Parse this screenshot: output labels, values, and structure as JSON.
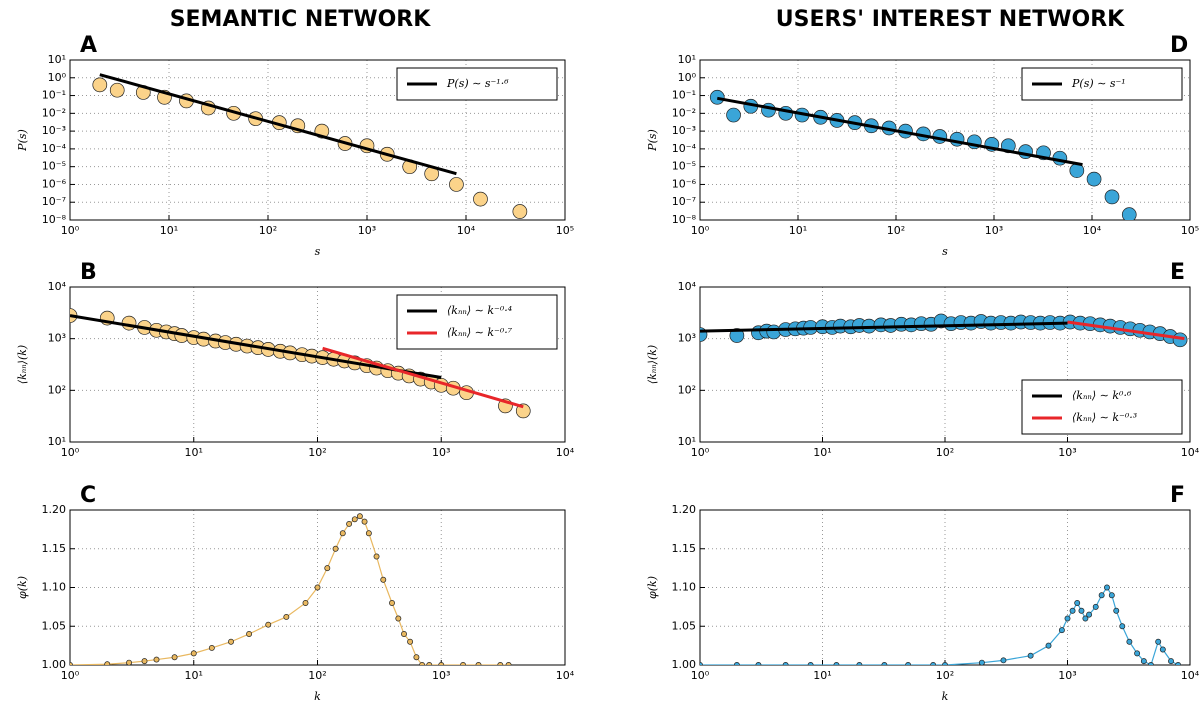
{
  "column_titles": [
    "SEMANTIC NETWORK",
    "USERS' INTEREST NETWORK"
  ],
  "chart_data": [
    {
      "type": "scatter",
      "panel": "A",
      "xscale": "log",
      "yscale": "log",
      "grid": true,
      "legend": "upper right",
      "xlabel": "s",
      "ylabel": "P(s)",
      "xlim": [
        1,
        100000
      ],
      "xticks": [
        {
          "value": 1,
          "label": "10⁰"
        },
        {
          "value": 10,
          "label": "10¹"
        },
        {
          "value": 100,
          "label": "10²"
        },
        {
          "value": 1000,
          "label": "10³"
        },
        {
          "value": 10000,
          "label": "10⁴"
        },
        {
          "value": 100000,
          "label": "10⁵"
        }
      ],
      "ylim": [
        1e-08,
        10
      ],
      "yticks": [
        {
          "value": 1e-08,
          "label": "10⁻⁸"
        },
        {
          "value": 1e-07,
          "label": "10⁻⁷"
        },
        {
          "value": 1e-06,
          "label": "10⁻⁶"
        },
        {
          "value": 1e-05,
          "label": "10⁻⁵"
        },
        {
          "value": 0.0001,
          "label": "10⁻⁴"
        },
        {
          "value": 0.001,
          "label": "10⁻³"
        },
        {
          "value": 0.01,
          "label": "10⁻²"
        },
        {
          "value": 0.1,
          "label": "10⁻¹"
        },
        {
          "value": 1,
          "label": "10⁰"
        },
        {
          "value": 10,
          "label": "10¹"
        }
      ],
      "series": [
        {
          "mode": "markers",
          "color": "#fbd38a",
          "x": [
            2,
            3,
            5.5,
            9,
            15,
            25,
            45,
            75,
            130,
            200,
            350,
            600,
            1000,
            1600,
            2700,
            4500,
            8000,
            14000,
            35000
          ],
          "values": [
            0.4,
            0.2,
            0.15,
            0.08,
            0.05,
            0.02,
            0.01,
            0.005,
            0.003,
            0.002,
            0.001,
            0.0002,
            0.00015,
            5e-05,
            1e-05,
            4e-06,
            1e-06,
            1.5e-07,
            3e-08
          ]
        },
        {
          "mode": "line",
          "name": "P(s) ∼ s⁻¹·⁶",
          "color": "#000000",
          "x": [
            2,
            8000
          ],
          "values": [
            1.5,
            4e-06
          ]
        }
      ]
    },
    {
      "type": "scatter",
      "panel": "B",
      "xscale": "log",
      "yscale": "log",
      "grid": true,
      "legend": "upper right",
      "ylabel": "⟨kₙₙ⟩(k)",
      "xlim": [
        1,
        10000
      ],
      "xticks": [
        {
          "value": 1,
          "label": "10⁰"
        },
        {
          "value": 10,
          "label": "10¹"
        },
        {
          "value": 100,
          "label": "10²"
        },
        {
          "value": 1000,
          "label": "10³"
        },
        {
          "value": 10000,
          "label": "10⁴"
        }
      ],
      "ylim": [
        10,
        10000
      ],
      "yticks": [
        {
          "value": 10,
          "label": "10¹"
        },
        {
          "value": 100,
          "label": "10²"
        },
        {
          "value": 1000,
          "label": "10³"
        },
        {
          "value": 10000,
          "label": "10⁴"
        }
      ],
      "series": [
        {
          "mode": "markers",
          "color": "#fbd38a",
          "x": [
            1,
            2,
            3,
            4,
            5,
            6,
            7,
            8,
            10,
            12,
            15,
            18,
            22,
            27,
            33,
            40,
            50,
            60,
            75,
            90,
            110,
            135,
            165,
            200,
            250,
            300,
            370,
            450,
            550,
            680,
            830,
            1000,
            1250,
            1600,
            3300,
            4600
          ],
          "values": [
            2800,
            2500,
            2000,
            1650,
            1450,
            1350,
            1250,
            1150,
            1050,
            980,
            900,
            840,
            780,
            720,
            670,
            620,
            570,
            530,
            490,
            460,
            430,
            400,
            370,
            340,
            300,
            270,
            240,
            215,
            190,
            165,
            145,
            125,
            110,
            90,
            50,
            40
          ]
        },
        {
          "mode": "line",
          "name": "⟨kₙₙ⟩ ∼ k⁻⁰·⁴",
          "color": "#000000",
          "x": [
            1,
            1000
          ],
          "values": [
            2800,
            177
          ]
        },
        {
          "mode": "line",
          "name": "⟨kₙₙ⟩ ∼ k⁻⁰·⁷",
          "color": "#e8262a",
          "x": [
            110,
            4600
          ],
          "values": [
            650,
            48
          ]
        }
      ]
    },
    {
      "type": "line",
      "panel": "C",
      "xscale": "log",
      "yscale": "linear",
      "grid": true,
      "xlabel": "k",
      "ylabel": "φ(k)",
      "xlim": [
        1,
        10000
      ],
      "xticks": [
        {
          "value": 1,
          "label": "10⁰"
        },
        {
          "value": 10,
          "label": "10¹"
        },
        {
          "value": 100,
          "label": "10²"
        },
        {
          "value": 1000,
          "label": "10³"
        },
        {
          "value": 10000,
          "label": "10⁴"
        }
      ],
      "ylim": [
        1,
        1.2
      ],
      "yticks": [
        {
          "value": 1,
          "label": "1.00"
        },
        1.05,
        {
          "value": 1.1,
          "label": "1.10"
        },
        1.15,
        {
          "value": 1.2,
          "label": "1.20"
        }
      ],
      "series": [
        {
          "mode": "line+markers",
          "color": "#e9b860",
          "x": [
            1,
            2,
            3,
            4,
            5,
            7,
            10,
            14,
            20,
            28,
            40,
            56,
            80,
            100,
            120,
            140,
            160,
            180,
            200,
            220,
            240,
            260,
            300,
            340,
            400,
            450,
            500,
            560,
            630,
            700,
            800,
            1000,
            1500,
            2000,
            3000,
            3500
          ],
          "values": [
            1,
            1.001,
            1.003,
            1.005,
            1.007,
            1.01,
            1.015,
            1.022,
            1.03,
            1.04,
            1.052,
            1.062,
            1.08,
            1.1,
            1.125,
            1.15,
            1.17,
            1.182,
            1.188,
            1.192,
            1.185,
            1.17,
            1.14,
            1.11,
            1.08,
            1.06,
            1.04,
            1.03,
            1.01,
            1,
            1,
            1,
            1,
            1,
            1,
            1
          ]
        }
      ]
    },
    {
      "type": "scatter",
      "panel": "D",
      "xscale": "log",
      "yscale": "log",
      "grid": true,
      "legend": "upper right",
      "xlabel": "s",
      "ylabel": "P(s)",
      "xlim": [
        1,
        100000
      ],
      "xticks": [
        {
          "value": 1,
          "label": "10⁰"
        },
        {
          "value": 10,
          "label": "10¹"
        },
        {
          "value": 100,
          "label": "10²"
        },
        {
          "value": 1000,
          "label": "10³"
        },
        {
          "value": 10000,
          "label": "10⁴"
        },
        {
          "value": 100000,
          "label": "10⁵"
        }
      ],
      "ylim": [
        1e-08,
        10
      ],
      "yticks": [
        {
          "value": 1e-08,
          "label": "10⁻⁸"
        },
        {
          "value": 1e-07,
          "label": "10⁻⁷"
        },
        {
          "value": 1e-06,
          "label": "10⁻⁶"
        },
        {
          "value": 1e-05,
          "label": "10⁻⁵"
        },
        {
          "value": 0.0001,
          "label": "10⁻⁴"
        },
        {
          "value": 0.001,
          "label": "10⁻³"
        },
        {
          "value": 0.01,
          "label": "10⁻²"
        },
        {
          "value": 0.1,
          "label": "10⁻¹"
        },
        {
          "value": 1,
          "label": "10⁰"
        },
        {
          "value": 10,
          "label": "10¹"
        }
      ],
      "series": [
        {
          "mode": "markers",
          "color": "#3aa5d8",
          "x": [
            1.5,
            2.2,
            3.3,
            5,
            7.5,
            11,
            17,
            25,
            38,
            56,
            85,
            125,
            190,
            280,
            420,
            630,
            950,
            1400,
            2100,
            3200,
            4700,
            7000,
            10500,
            16000,
            24000
          ],
          "values": [
            0.08,
            0.008,
            0.025,
            0.015,
            0.01,
            0.008,
            0.006,
            0.004,
            0.003,
            0.002,
            0.0015,
            0.001,
            0.0007,
            0.0005,
            0.00035,
            0.00025,
            0.00018,
            0.00015,
            7e-05,
            6e-05,
            3e-05,
            6e-06,
            2e-06,
            2e-07,
            2e-08
          ]
        },
        {
          "mode": "line",
          "name": "P(s) ∼ s⁻¹",
          "color": "#000000",
          "x": [
            1.5,
            8000
          ],
          "values": [
            0.07,
            1.3e-05
          ]
        }
      ]
    },
    {
      "type": "scatter",
      "panel": "E",
      "xscale": "log",
      "yscale": "log",
      "grid": true,
      "legend": "lower right",
      "ylabel": "⟨kₙₙ⟩(k)",
      "xlim": [
        1,
        10000
      ],
      "xticks": [
        {
          "value": 1,
          "label": "10⁰"
        },
        {
          "value": 10,
          "label": "10¹"
        },
        {
          "value": 100,
          "label": "10²"
        },
        {
          "value": 1000,
          "label": "10³"
        },
        {
          "value": 10000,
          "label": "10⁴"
        }
      ],
      "ylim": [
        10,
        10000
      ],
      "yticks": [
        {
          "value": 10,
          "label": "10¹"
        },
        {
          "value": 100,
          "label": "10²"
        },
        {
          "value": 1000,
          "label": "10³"
        },
        {
          "value": 10000,
          "label": "10⁴"
        }
      ],
      "series": [
        {
          "mode": "markers",
          "color": "#3aa5d8",
          "x": [
            1,
            2,
            3,
            3.5,
            4,
            5,
            6,
            7,
            8,
            10,
            12,
            14,
            17,
            20,
            24,
            30,
            36,
            44,
            53,
            64,
            77,
            93,
            112,
            135,
            163,
            197,
            237,
            286,
            345,
            416,
            500,
            600,
            720,
            870,
            1050,
            1270,
            1530,
            1850,
            2230,
            2700,
            3250,
            3900,
            4700,
            5700,
            6900,
            8300
          ],
          "values": [
            1200,
            1150,
            1300,
            1400,
            1350,
            1500,
            1550,
            1600,
            1650,
            1700,
            1650,
            1750,
            1700,
            1800,
            1750,
            1850,
            1800,
            1900,
            1850,
            1950,
            1900,
            2200,
            1950,
            2050,
            2000,
            2150,
            2000,
            2050,
            2000,
            2100,
            2050,
            2000,
            2050,
            2000,
            2100,
            2000,
            1950,
            1850,
            1750,
            1650,
            1550,
            1450,
            1350,
            1250,
            1100,
            950
          ]
        },
        {
          "mode": "line",
          "name": "⟨kₙₙ⟩ ∼ k⁰·⁶",
          "color": "#000000",
          "x": [
            1,
            1000
          ],
          "values": [
            1400,
            2000
          ]
        },
        {
          "mode": "line",
          "name": "⟨kₙₙ⟩ ∼ k⁻⁰·³",
          "color": "#e8262a",
          "x": [
            1000,
            9000
          ],
          "values": [
            2100,
            1000
          ]
        }
      ]
    },
    {
      "type": "line",
      "panel": "F",
      "xscale": "log",
      "yscale": "linear",
      "grid": true,
      "xlabel": "k",
      "ylabel": "φ(k)",
      "xlim": [
        1,
        10000
      ],
      "xticks": [
        {
          "value": 1,
          "label": "10⁰"
        },
        {
          "value": 10,
          "label": "10¹"
        },
        {
          "value": 100,
          "label": "10²"
        },
        {
          "value": 1000,
          "label": "10³"
        },
        {
          "value": 10000,
          "label": "10⁴"
        }
      ],
      "ylim": [
        1,
        1.2
      ],
      "yticks": [
        {
          "value": 1,
          "label": "1.00"
        },
        1.05,
        {
          "value": 1.1,
          "label": "1.10"
        },
        1.15,
        {
          "value": 1.2,
          "label": "1.20"
        }
      ],
      "series": [
        {
          "mode": "line+markers",
          "color": "#3aa5d8",
          "x": [
            1,
            2,
            3,
            5,
            8,
            13,
            20,
            32,
            50,
            80,
            100,
            200,
            300,
            500,
            700,
            900,
            1000,
            1100,
            1200,
            1300,
            1400,
            1500,
            1700,
            1900,
            2100,
            2300,
            2500,
            2800,
            3200,
            3700,
            4200,
            4800,
            5500,
            6000,
            7000,
            8000
          ],
          "values": [
            1,
            1,
            1,
            1,
            1,
            1,
            1,
            1,
            1,
            1,
            1,
            1.003,
            1.006,
            1.012,
            1.025,
            1.045,
            1.06,
            1.07,
            1.08,
            1.07,
            1.06,
            1.065,
            1.075,
            1.09,
            1.1,
            1.09,
            1.07,
            1.05,
            1.03,
            1.015,
            1.005,
            1,
            1.03,
            1.02,
            1.005,
            1
          ]
        }
      ]
    }
  ]
}
